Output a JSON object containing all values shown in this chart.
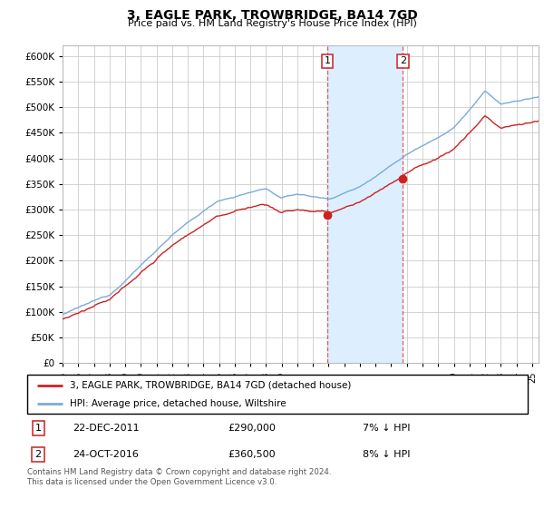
{
  "title": "3, EAGLE PARK, TROWBRIDGE, BA14 7GD",
  "subtitle": "Price paid vs. HM Land Registry's House Price Index (HPI)",
  "ytick_values": [
    0,
    50000,
    100000,
    150000,
    200000,
    250000,
    300000,
    350000,
    400000,
    450000,
    500000,
    550000,
    600000
  ],
  "ylim": [
    0,
    620000
  ],
  "hpi_color": "#7aaadd",
  "price_color": "#cc2222",
  "sale1_idx": 203,
  "sale2_idx": 261,
  "sale1_price_val": 290000,
  "sale2_price_val": 360500,
  "sale1_date": "22-DEC-2011",
  "sale1_price": "£290,000",
  "sale1_below": "7% ↓ HPI",
  "sale2_date": "24-OCT-2016",
  "sale2_price": "£360,500",
  "sale2_below": "8% ↓ HPI",
  "legend_price_label": "3, EAGLE PARK, TROWBRIDGE, BA14 7GD (detached house)",
  "legend_hpi_label": "HPI: Average price, detached house, Wiltshire",
  "footer": "Contains HM Land Registry data © Crown copyright and database right 2024.\nThis data is licensed under the Open Government Licence v3.0.",
  "grid_color": "#cccccc",
  "span_color": "#ddeeff",
  "n_months": 366,
  "start_year": 1995
}
